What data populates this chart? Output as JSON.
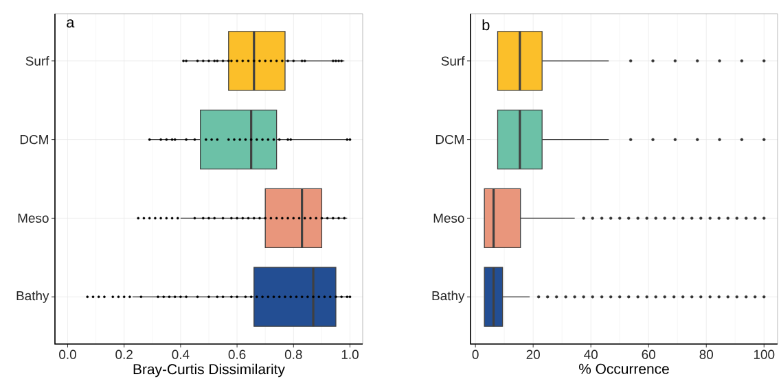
{
  "chart_data": [
    {
      "type": "box",
      "orientation": "horizontal",
      "categories": [
        "Surf",
        "DCM",
        "Meso",
        "Bathy"
      ],
      "xlabel": "Bray-Curtis Dissimilarity",
      "annotations": [
        "a"
      ],
      "grid": true,
      "xlim": [
        -0.045,
        1.045
      ],
      "xticks": [
        {
          "value": 0,
          "label": "0.0"
        },
        0.2,
        0.4,
        0.6,
        0.8,
        {
          "value": 1,
          "label": "1.0"
        }
      ],
      "series": [
        {
          "type": "box",
          "colors": [
            "#fbbf2a",
            "#6cc1a7",
            "#e9967c",
            "#234e93"
          ],
          "boxes": [
            {
              "low": 0.41,
              "q1": 0.57,
              "median": 0.66,
              "q3": 0.77,
              "high": 0.98
            },
            {
              "low": 0.29,
              "q1": 0.47,
              "median": 0.65,
              "q3": 0.74,
              "high": 1.0
            },
            {
              "low": 0.4,
              "q1": 0.7,
              "median": 0.83,
              "q3": 0.9,
              "high": 0.99
            },
            {
              "low": 0.23,
              "q1": 0.66,
              "median": 0.87,
              "q3": 0.95,
              "high": 1.0
            }
          ]
        },
        {
          "type": "scatter",
          "color": "#000000",
          "x": [
            "Surf",
            "Surf",
            "Surf",
            "Surf",
            "Surf",
            "Surf",
            "Surf",
            "Surf",
            "Surf",
            "Surf",
            "Surf",
            "Surf",
            "Surf",
            "Surf",
            "Surf",
            "Surf",
            "Surf",
            "Surf",
            "Surf",
            "Surf",
            "Surf",
            "Surf",
            "Surf",
            "Surf",
            "Surf",
            "Surf",
            "Surf",
            "DCM",
            "DCM",
            "DCM",
            "DCM",
            "DCM",
            "DCM",
            "DCM",
            "DCM",
            "DCM",
            "DCM",
            "DCM",
            "DCM",
            "DCM",
            "DCM",
            "DCM",
            "DCM",
            "DCM",
            "DCM",
            "DCM",
            "DCM",
            "DCM",
            "DCM",
            "DCM",
            "DCM",
            "Meso",
            "Meso",
            "Meso",
            "Meso",
            "Meso",
            "Meso",
            "Meso",
            "Meso",
            "Meso",
            "Meso",
            "Meso",
            "Meso",
            "Meso",
            "Meso",
            "Meso",
            "Meso",
            "Meso",
            "Meso",
            "Meso",
            "Meso",
            "Meso",
            "Meso",
            "Meso",
            "Meso",
            "Meso",
            "Meso",
            "Meso",
            "Meso",
            "Meso",
            "Meso",
            "Meso",
            "Meso",
            "Meso",
            "Meso",
            "Bathy",
            "Bathy",
            "Bathy",
            "Bathy",
            "Bathy",
            "Bathy",
            "Bathy",
            "Bathy",
            "Bathy",
            "Bathy",
            "Bathy",
            "Bathy",
            "Bathy",
            "Bathy",
            "Bathy",
            "Bathy",
            "Bathy",
            "Bathy",
            "Bathy",
            "Bathy",
            "Bathy",
            "Bathy",
            "Bathy",
            "Bathy",
            "Bathy",
            "Bathy",
            "Bathy",
            "Bathy",
            "Bathy",
            "Bathy",
            "Bathy",
            "Bathy",
            "Bathy",
            "Bathy",
            "Bathy",
            "Bathy",
            "Bathy",
            "Bathy",
            "Bathy",
            "Bathy",
            "Bathy"
          ],
          "values": [
            0.41,
            0.42,
            0.46,
            0.48,
            0.5,
            0.52,
            0.53,
            0.55,
            0.57,
            0.58,
            0.6,
            0.62,
            0.64,
            0.66,
            0.68,
            0.7,
            0.72,
            0.74,
            0.76,
            0.78,
            0.8,
            0.83,
            0.84,
            0.94,
            0.95,
            0.96,
            0.97,
            0.29,
            0.33,
            0.35,
            0.37,
            0.38,
            0.42,
            0.45,
            0.49,
            0.51,
            0.53,
            0.57,
            0.59,
            0.61,
            0.63,
            0.65,
            0.67,
            0.69,
            0.71,
            0.73,
            0.75,
            0.78,
            0.79,
            0.99,
            1.0,
            0.25,
            0.27,
            0.29,
            0.31,
            0.33,
            0.35,
            0.37,
            0.39,
            0.45,
            0.48,
            0.5,
            0.52,
            0.55,
            0.58,
            0.6,
            0.62,
            0.64,
            0.66,
            0.68,
            0.7,
            0.72,
            0.74,
            0.76,
            0.78,
            0.8,
            0.82,
            0.84,
            0.86,
            0.88,
            0.9,
            0.92,
            0.94,
            0.96,
            0.98,
            0.07,
            0.09,
            0.11,
            0.13,
            0.16,
            0.18,
            0.2,
            0.22,
            0.26,
            0.32,
            0.34,
            0.36,
            0.38,
            0.4,
            0.42,
            0.46,
            0.5,
            0.53,
            0.55,
            0.58,
            0.6,
            0.63,
            0.65,
            0.67,
            0.69,
            0.71,
            0.73,
            0.75,
            0.77,
            0.79,
            0.81,
            0.83,
            0.85,
            0.87,
            0.89,
            0.91,
            0.93,
            0.95,
            0.97,
            0.99,
            1.0
          ]
        }
      ]
    },
    {
      "type": "box",
      "orientation": "horizontal",
      "categories": [
        "Surf",
        "DCM",
        "Meso",
        "Bathy"
      ],
      "xlabel": "% Occurrence",
      "annotations": [
        "b"
      ],
      "grid": true,
      "xlim": [
        -1.7,
        104.7
      ],
      "xticks": [
        0,
        20,
        40,
        60,
        80,
        100
      ],
      "series": [
        {
          "type": "box",
          "colors": [
            "#fbbf2a",
            "#6cc1a7",
            "#e9967c",
            "#234e93"
          ],
          "boxes": [
            {
              "low": 7.7,
              "q1": 7.7,
              "median": 15.4,
              "q3": 23.1,
              "high": 46.2,
              "outliers": [
                53.8,
                61.5,
                69.2,
                76.9,
                84.6,
                92.3,
                100
              ]
            },
            {
              "low": 7.7,
              "q1": 7.7,
              "median": 15.4,
              "q3": 23.1,
              "high": 46.2,
              "outliers": [
                53.8,
                61.5,
                69.2,
                76.9,
                84.6,
                92.3,
                100
              ]
            },
            {
              "low": 3.1,
              "q1": 3.1,
              "median": 6.3,
              "q3": 15.6,
              "high": 34.4,
              "outliers": [
                37.5,
                40.6,
                43.8,
                46.9,
                50,
                53.1,
                56.3,
                59.4,
                62.5,
                65.6,
                68.8,
                71.9,
                75,
                78.1,
                81.3,
                84.4,
                87.5,
                90.6,
                93.8,
                96.9,
                100
              ]
            },
            {
              "low": 3.1,
              "q1": 3.1,
              "median": 6.3,
              "q3": 9.4,
              "high": 18.8,
              "outliers": [
                21.9,
                25,
                28.1,
                31.3,
                34.4,
                37.5,
                40.6,
                43.8,
                46.9,
                50,
                53.1,
                56.3,
                59.4,
                62.5,
                65.6,
                68.8,
                71.9,
                75,
                78.1,
                81.3,
                84.4,
                87.5,
                90.6,
                93.8,
                96.9,
                100
              ]
            }
          ]
        }
      ]
    }
  ]
}
